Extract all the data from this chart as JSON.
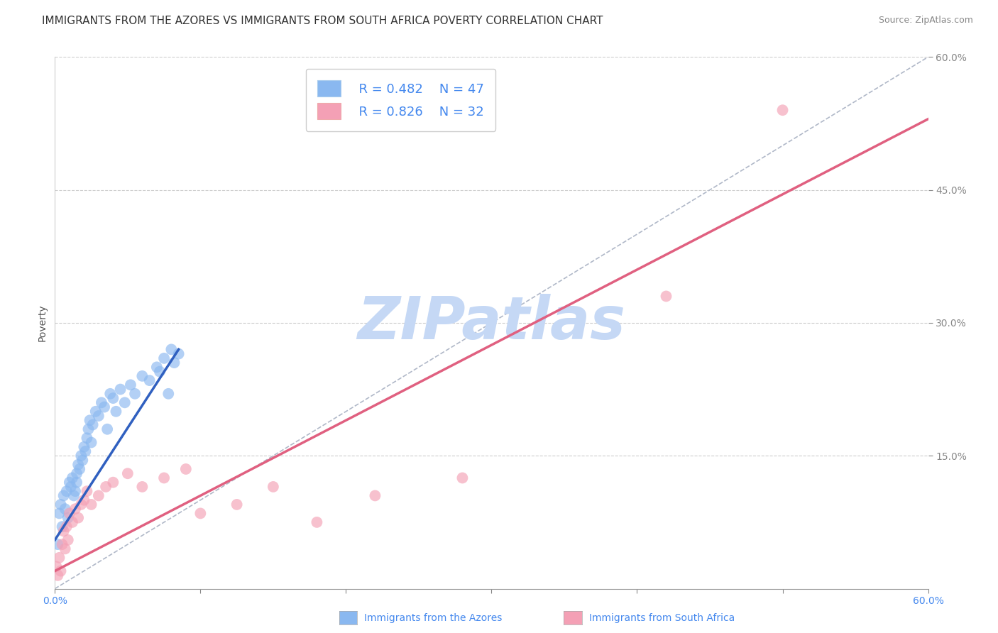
{
  "title": "IMMIGRANTS FROM THE AZORES VS IMMIGRANTS FROM SOUTH AFRICA POVERTY CORRELATION CHART",
  "source": "Source: ZipAtlas.com",
  "ylabel": "Poverty",
  "xlim": [
    0,
    60
  ],
  "ylim": [
    0,
    60
  ],
  "ytick_labels_right": [
    "15.0%",
    "30.0%",
    "45.0%",
    "60.0%"
  ],
  "ytick_positions_right": [
    15,
    30,
    45,
    60
  ],
  "xtick_positions": [
    0,
    10,
    20,
    30,
    40,
    50,
    60
  ],
  "grid_color": "#cccccc",
  "background_color": "#ffffff",
  "watermark_text": "ZIPatlas",
  "watermark_color": "#c5d8f5",
  "legend_R1": "R = 0.482",
  "legend_N1": "N = 47",
  "legend_R2": "R = 0.826",
  "legend_N2": "N = 32",
  "color_azores": "#8ab8f0",
  "color_sa": "#f4a0b5",
  "line_color_azores": "#3060c0",
  "line_color_sa": "#e06080",
  "ref_line_color": "#b0b8c8",
  "azores_scatter_x": [
    0.2,
    0.3,
    0.4,
    0.5,
    0.6,
    0.7,
    0.8,
    0.9,
    1.0,
    1.1,
    1.2,
    1.3,
    1.4,
    1.5,
    1.5,
    1.6,
    1.7,
    1.8,
    1.9,
    2.0,
    2.1,
    2.2,
    2.3,
    2.4,
    2.5,
    2.6,
    2.8,
    3.0,
    3.2,
    3.4,
    3.6,
    3.8,
    4.0,
    4.2,
    4.5,
    4.8,
    5.2,
    5.5,
    6.0,
    6.5,
    7.0,
    7.2,
    7.5,
    7.8,
    8.0,
    8.2,
    8.5
  ],
  "azores_scatter_y": [
    5.0,
    8.5,
    9.5,
    7.0,
    10.5,
    9.0,
    11.0,
    8.0,
    12.0,
    11.5,
    12.5,
    10.5,
    11.0,
    13.0,
    12.0,
    14.0,
    13.5,
    15.0,
    14.5,
    16.0,
    15.5,
    17.0,
    18.0,
    19.0,
    16.5,
    18.5,
    20.0,
    19.5,
    21.0,
    20.5,
    18.0,
    22.0,
    21.5,
    20.0,
    22.5,
    21.0,
    23.0,
    22.0,
    24.0,
    23.5,
    25.0,
    24.5,
    26.0,
    22.0,
    27.0,
    25.5,
    26.5
  ],
  "sa_scatter_x": [
    0.1,
    0.2,
    0.3,
    0.4,
    0.5,
    0.6,
    0.7,
    0.8,
    0.9,
    1.0,
    1.2,
    1.4,
    1.6,
    1.8,
    2.0,
    2.2,
    2.5,
    3.0,
    3.5,
    4.0,
    5.0,
    6.0,
    7.5,
    9.0,
    10.0,
    12.5,
    15.0,
    18.0,
    22.0,
    28.0,
    42.0,
    50.0
  ],
  "sa_scatter_y": [
    2.5,
    1.5,
    3.5,
    2.0,
    5.0,
    6.5,
    4.5,
    7.0,
    5.5,
    8.5,
    7.5,
    9.0,
    8.0,
    9.5,
    10.0,
    11.0,
    9.5,
    10.5,
    11.5,
    12.0,
    13.0,
    11.5,
    12.5,
    13.5,
    8.5,
    9.5,
    11.5,
    7.5,
    10.5,
    12.5,
    33.0,
    54.0
  ],
  "azores_trendline_x": [
    0.0,
    8.5
  ],
  "azores_trendline_y": [
    5.5,
    27.0
  ],
  "sa_trendline_x": [
    0.0,
    60.0
  ],
  "sa_trendline_y": [
    2.0,
    53.0
  ],
  "ref_line_x": [
    0.0,
    60.0
  ],
  "ref_line_y": [
    0.0,
    60.0
  ],
  "title_fontsize": 11,
  "source_fontsize": 9,
  "label_fontsize": 10,
  "tick_fontsize": 10,
  "legend_fontsize": 13,
  "watermark_fontsize": 60
}
